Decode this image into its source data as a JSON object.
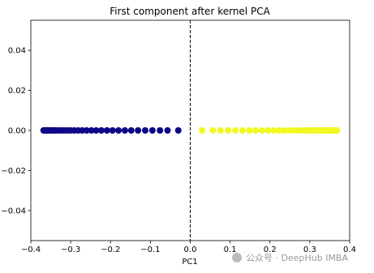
{
  "chart_data": {
    "type": "scatter",
    "title": "First component after kernel PCA",
    "xlabel": "PC1",
    "watermark": "公众号 · DeepHub IMBA",
    "xlim": [
      -0.4,
      0.4
    ],
    "ylim": [
      -0.055,
      0.055
    ],
    "xticks": [
      {
        "value": -0.4,
        "label": "−0.4"
      },
      {
        "value": -0.3,
        "label": "−0.3"
      },
      {
        "value": -0.2,
        "label": "−0.2"
      },
      {
        "value": -0.1,
        "label": "−0.1"
      },
      {
        "value": 0,
        "label": "0.0"
      },
      0.1,
      0.2,
      0.3,
      0.4
    ],
    "yticks": [
      {
        "value": -0.04,
        "label": "−0.04"
      },
      {
        "value": -0.02,
        "label": "−0.02"
      },
      {
        "value": 0,
        "label": "0.00"
      },
      0.02,
      0.04
    ],
    "vline_x": 0,
    "series": [
      {
        "color": "#0d0887",
        "x": [
          -0.368,
          -0.366,
          -0.364,
          -0.362,
          -0.36,
          -0.357,
          -0.354,
          -0.35,
          -0.346,
          -0.341,
          -0.336,
          -0.33,
          -0.323,
          -0.316,
          -0.308,
          -0.3,
          -0.291,
          -0.281,
          -0.271,
          -0.26,
          -0.248,
          -0.236,
          -0.223,
          -0.209,
          -0.195,
          -0.18,
          -0.164,
          -0.148,
          -0.131,
          -0.113,
          -0.095,
          -0.076,
          -0.057,
          -0.03
        ],
        "y": [
          0,
          0,
          0,
          0,
          0,
          0,
          0,
          0,
          0,
          0,
          0,
          0,
          0,
          0,
          0,
          0,
          0,
          0,
          0,
          0,
          0,
          0,
          0,
          0,
          0,
          0,
          0,
          0,
          0,
          0,
          0,
          0,
          0,
          0
        ]
      },
      {
        "color": "#f0f921",
        "x": [
          0.03,
          0.057,
          0.076,
          0.095,
          0.113,
          0.131,
          0.148,
          0.164,
          0.18,
          0.195,
          0.209,
          0.223,
          0.236,
          0.248,
          0.26,
          0.271,
          0.281,
          0.291,
          0.3,
          0.308,
          0.316,
          0.323,
          0.33,
          0.336,
          0.341,
          0.346,
          0.35,
          0.354,
          0.357,
          0.36,
          0.362,
          0.364,
          0.366,
          0.368
        ],
        "y": [
          0,
          0,
          0,
          0,
          0,
          0,
          0,
          0,
          0,
          0,
          0,
          0,
          0,
          0,
          0,
          0,
          0,
          0,
          0,
          0,
          0,
          0,
          0,
          0,
          0,
          0,
          0,
          0,
          0,
          0,
          0,
          0,
          0,
          0
        ]
      }
    ]
  }
}
